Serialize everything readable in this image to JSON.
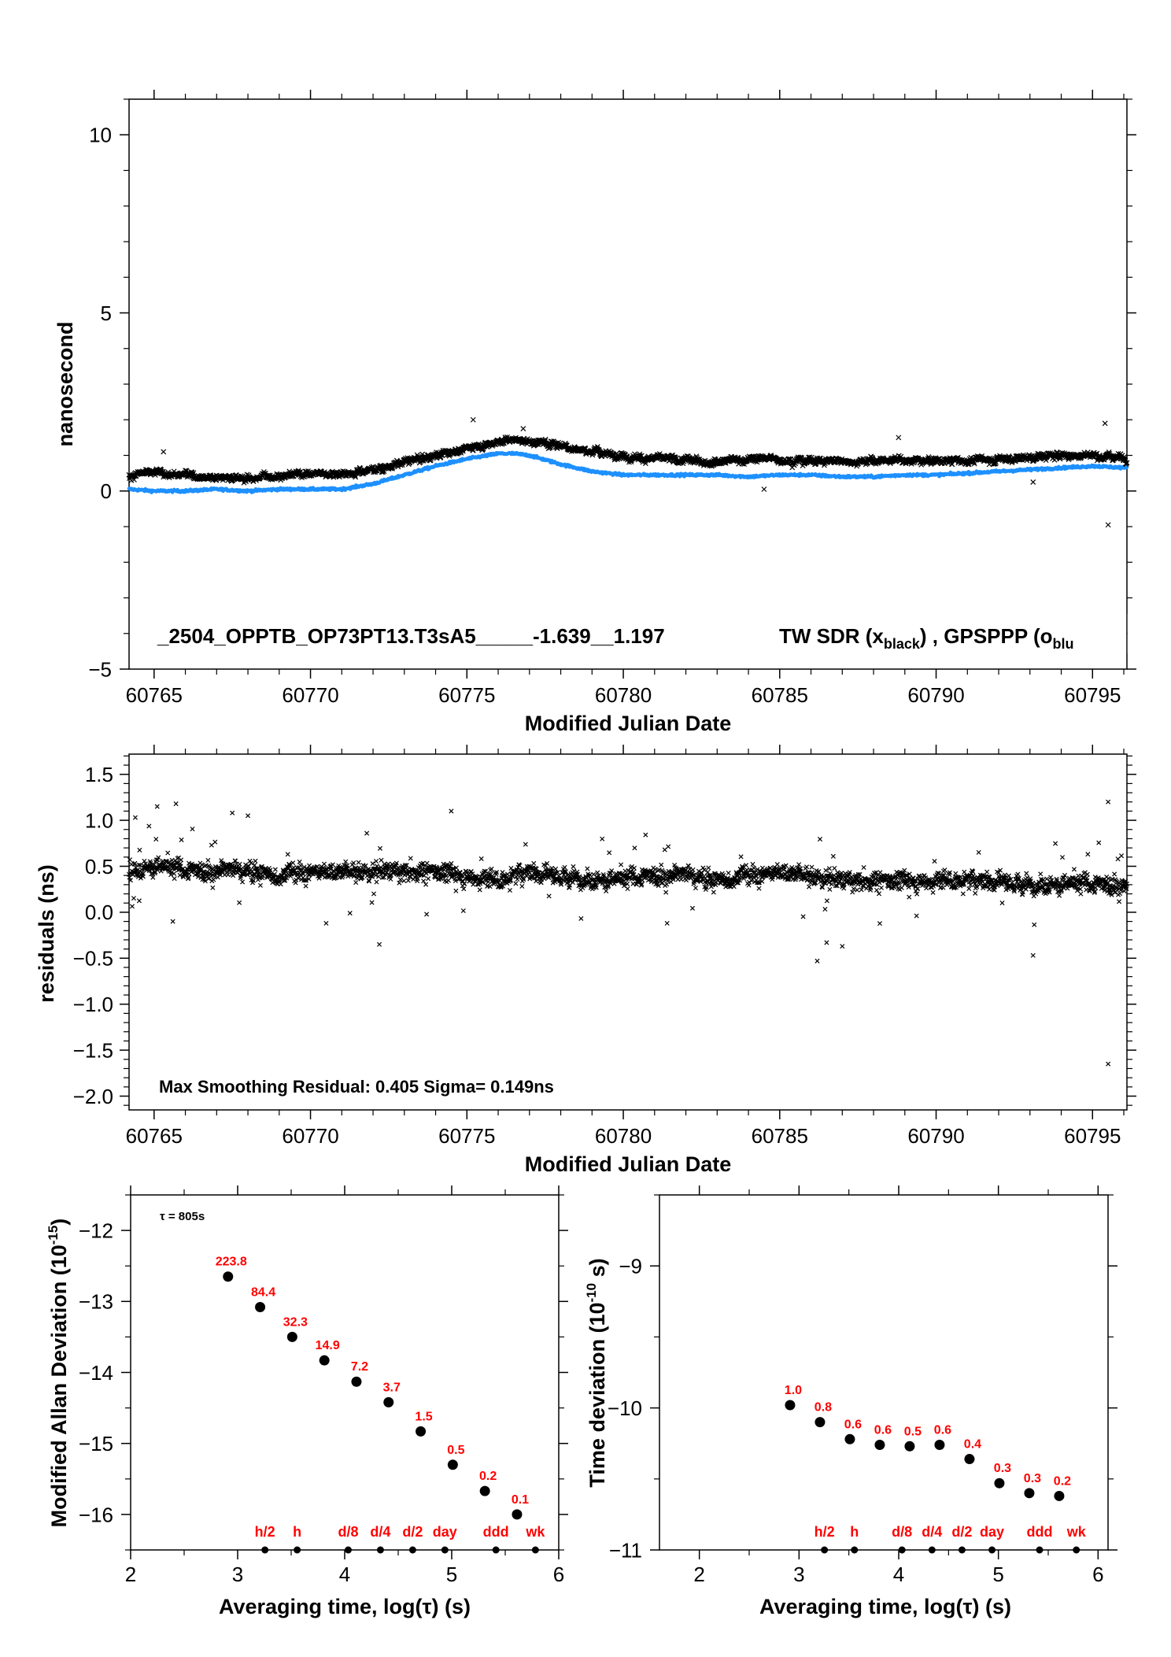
{
  "chart_data": [
    {
      "id": "top",
      "type": "scatter",
      "title": "_2504_OPPTB_OP73PT13.T3sA5_____-1.639__1.197",
      "legend": {
        "main": "TW SDR (x",
        "sub": "black",
        "sep": ") ,  GPSPPP (o",
        "sub2": "blu"
      },
      "xlabel": "Modified Julian Date",
      "ylabel": "nanosecond",
      "xlim": [
        60764.2,
        60796.1
      ],
      "ylim": [
        -5,
        11
      ],
      "xticks": [
        60765,
        60770,
        60775,
        60780,
        60785,
        60790,
        60795
      ],
      "yticks": [
        -5,
        0,
        5,
        10
      ],
      "ytick_labels": [
        "−5",
        "0",
        "5",
        "10"
      ],
      "series": [
        {
          "marker": "x",
          "color": "#000000",
          "x": [
            60764.2,
            60765,
            60766,
            60767,
            60768,
            60769,
            60770,
            60771,
            60772,
            60773,
            60774,
            60775,
            60775.5,
            60776,
            60776.5,
            60777,
            60778,
            60779,
            60780,
            60781,
            60782,
            60783,
            60784,
            60785,
            60786,
            60787,
            60788,
            60789,
            60790,
            60791,
            60792,
            60793,
            60794,
            60795,
            60796.1
          ],
          "y": [
            0.45,
            0.5,
            0.45,
            0.4,
            0.35,
            0.45,
            0.5,
            0.5,
            0.6,
            0.8,
            1.0,
            1.2,
            1.3,
            1.4,
            1.45,
            1.4,
            1.3,
            1.1,
            1.0,
            0.9,
            0.85,
            0.85,
            0.9,
            0.9,
            0.85,
            0.85,
            0.85,
            0.85,
            0.85,
            0.85,
            0.9,
            0.95,
            1.0,
            1.0,
            0.95
          ],
          "outliers": [
            [
              60765.3,
              1.1
            ],
            [
              60775.2,
              2.0
            ],
            [
              60776.8,
              1.75
            ],
            [
              60788.8,
              1.5
            ],
            [
              60795.4,
              1.9
            ],
            [
              60795.5,
              -0.95
            ],
            [
              60784.5,
              0.05
            ],
            [
              60793.1,
              0.25
            ]
          ]
        },
        {
          "marker": "o",
          "color": "#1e90ff",
          "x": [
            60764.2,
            60765,
            60766,
            60767,
            60768,
            60769,
            60770,
            60771,
            60772,
            60773,
            60774,
            60775,
            60776,
            60776.5,
            60777,
            60778,
            60779,
            60780,
            60781,
            60782,
            60783,
            60784,
            60785,
            60786,
            60787,
            60788,
            60789,
            60790,
            60791,
            60792,
            60793,
            60794,
            60795,
            60796.1
          ],
          "y": [
            0.05,
            0.0,
            0.0,
            0.05,
            0.0,
            0.05,
            0.05,
            0.05,
            0.2,
            0.45,
            0.7,
            0.9,
            1.05,
            1.05,
            1.0,
            0.75,
            0.55,
            0.45,
            0.45,
            0.45,
            0.45,
            0.4,
            0.45,
            0.45,
            0.4,
            0.4,
            0.45,
            0.45,
            0.5,
            0.55,
            0.6,
            0.65,
            0.7,
            0.65
          ]
        }
      ]
    },
    {
      "id": "middle",
      "type": "scatter",
      "annotation": "Max Smoothing Residual: 0.405  Sigma= 0.149ns",
      "xlabel": "Modified Julian Date",
      "ylabel": "residuals (ns)",
      "xlim": [
        60764.2,
        60796.1
      ],
      "ylim": [
        -2.15,
        1.72
      ],
      "xticks": [
        60765,
        60770,
        60775,
        60780,
        60785,
        60790,
        60795
      ],
      "yticks": [
        -2.0,
        -1.5,
        -1.0,
        -0.5,
        0.0,
        0.5,
        1.0,
        1.5
      ],
      "ytick_labels": [
        "−2.0",
        "−1.5",
        "−1.0",
        "−0.5",
        "0.0",
        "0.5",
        "1.0",
        "1.5"
      ],
      "series": [
        {
          "marker": "x",
          "color": "#000000",
          "x": [
            60764.2,
            60765,
            60766,
            60767,
            60768,
            60769,
            60770,
            60771,
            60772,
            60773,
            60774,
            60775,
            60776,
            60777,
            60778,
            60779,
            60780,
            60781,
            60782,
            60783,
            60784,
            60785,
            60786,
            60787,
            60788,
            60789,
            60790,
            60791,
            60792,
            60793,
            60794,
            60795,
            60796.1
          ],
          "y": [
            0.45,
            0.5,
            0.45,
            0.45,
            0.45,
            0.4,
            0.45,
            0.45,
            0.45,
            0.45,
            0.45,
            0.4,
            0.35,
            0.45,
            0.4,
            0.35,
            0.35,
            0.4,
            0.4,
            0.35,
            0.4,
            0.45,
            0.4,
            0.35,
            0.35,
            0.35,
            0.35,
            0.35,
            0.35,
            0.3,
            0.3,
            0.3,
            0.3
          ],
          "outliers": [
            [
              60764.4,
              1.03
            ],
            [
              60765.1,
              1.15
            ],
            [
              60765.7,
              1.18
            ],
            [
              60767.5,
              1.08
            ],
            [
              60768.0,
              1.05
            ],
            [
              60774.5,
              1.1
            ],
            [
              60772.2,
              -0.35
            ],
            [
              60786.2,
              -0.53
            ],
            [
              60786.5,
              -0.33
            ],
            [
              60787.0,
              -0.37
            ],
            [
              60793.1,
              -0.47
            ],
            [
              60795.5,
              1.2
            ],
            [
              60795.5,
              -1.65
            ],
            [
              60765.6,
              -0.1
            ],
            [
              60770.5,
              -0.12
            ],
            [
              60781.4,
              -0.12
            ]
          ]
        }
      ]
    },
    {
      "id": "mdev",
      "type": "scatter",
      "corner_label": "τ = 805s",
      "xlabel": "Averaging time, log(τ) (s)",
      "ylabel_main": "Modified Allan Deviation (10",
      "ylabel_exp": "-15",
      "ylabel_end": ")",
      "xlim": [
        2,
        6
      ],
      "ylim": [
        -16.5,
        -11.5
      ],
      "xticks": [
        2,
        3,
        4,
        5,
        6
      ],
      "yticks": [
        -16,
        -15,
        -14,
        -13,
        -12
      ],
      "ytick_labels": [
        "−16",
        "−15",
        "−14",
        "−13",
        "−12"
      ],
      "x": [
        2.91,
        3.21,
        3.51,
        3.81,
        4.11,
        4.41,
        4.71,
        5.01,
        5.31,
        5.61
      ],
      "y": [
        -12.65,
        -13.08,
        -13.5,
        -13.83,
        -14.13,
        -14.42,
        -14.83,
        -15.3,
        -15.67,
        -16.0
      ],
      "labels": [
        "223.8",
        "84.4",
        "32.3",
        "14.9",
        "7.2",
        "3.7",
        "1.5",
        "0.5",
        "0.2",
        "0.1"
      ],
      "period_labels": [
        "h/2",
        "h",
        "d/8",
        "d/4",
        "d/2",
        "day",
        "ddd",
        "wk"
      ],
      "period_x": [
        3.255,
        3.556,
        4.033,
        4.334,
        4.635,
        4.936,
        5.413,
        5.782
      ]
    },
    {
      "id": "tdev",
      "type": "scatter",
      "xlabel": "Averaging time, log(τ) (s)",
      "ylabel_main": "Time deviation (10",
      "ylabel_exp": "-10",
      "ylabel_end": " s)",
      "xlim": [
        1.6,
        6.1
      ],
      "ylim": [
        -11,
        -8.5
      ],
      "xticks": [
        2,
        3,
        4,
        5,
        6
      ],
      "yticks": [
        -11,
        -10,
        -9
      ],
      "ytick_labels": [
        "−11",
        "−10",
        "−9"
      ],
      "x": [
        2.91,
        3.21,
        3.51,
        3.81,
        4.11,
        4.41,
        4.71,
        5.01,
        5.31,
        5.61
      ],
      "y": [
        -9.98,
        -10.1,
        -10.22,
        -10.26,
        -10.27,
        -10.26,
        -10.36,
        -10.53,
        -10.6,
        -10.62
      ],
      "labels": [
        "1.0",
        "0.8",
        "0.6",
        "0.6",
        "0.5",
        "0.6",
        "0.4",
        "0.3",
        "0.3",
        "0.2"
      ],
      "period_labels": [
        "h/2",
        "h",
        "d/8",
        "d/4",
        "d/2",
        "day",
        "ddd",
        "wk"
      ],
      "period_x": [
        3.255,
        3.556,
        4.033,
        4.334,
        4.635,
        4.936,
        5.413,
        5.782
      ]
    }
  ],
  "colors": {
    "axis": "#000000",
    "gps": "#1e90ff",
    "annotation_red": "#ff0000"
  }
}
